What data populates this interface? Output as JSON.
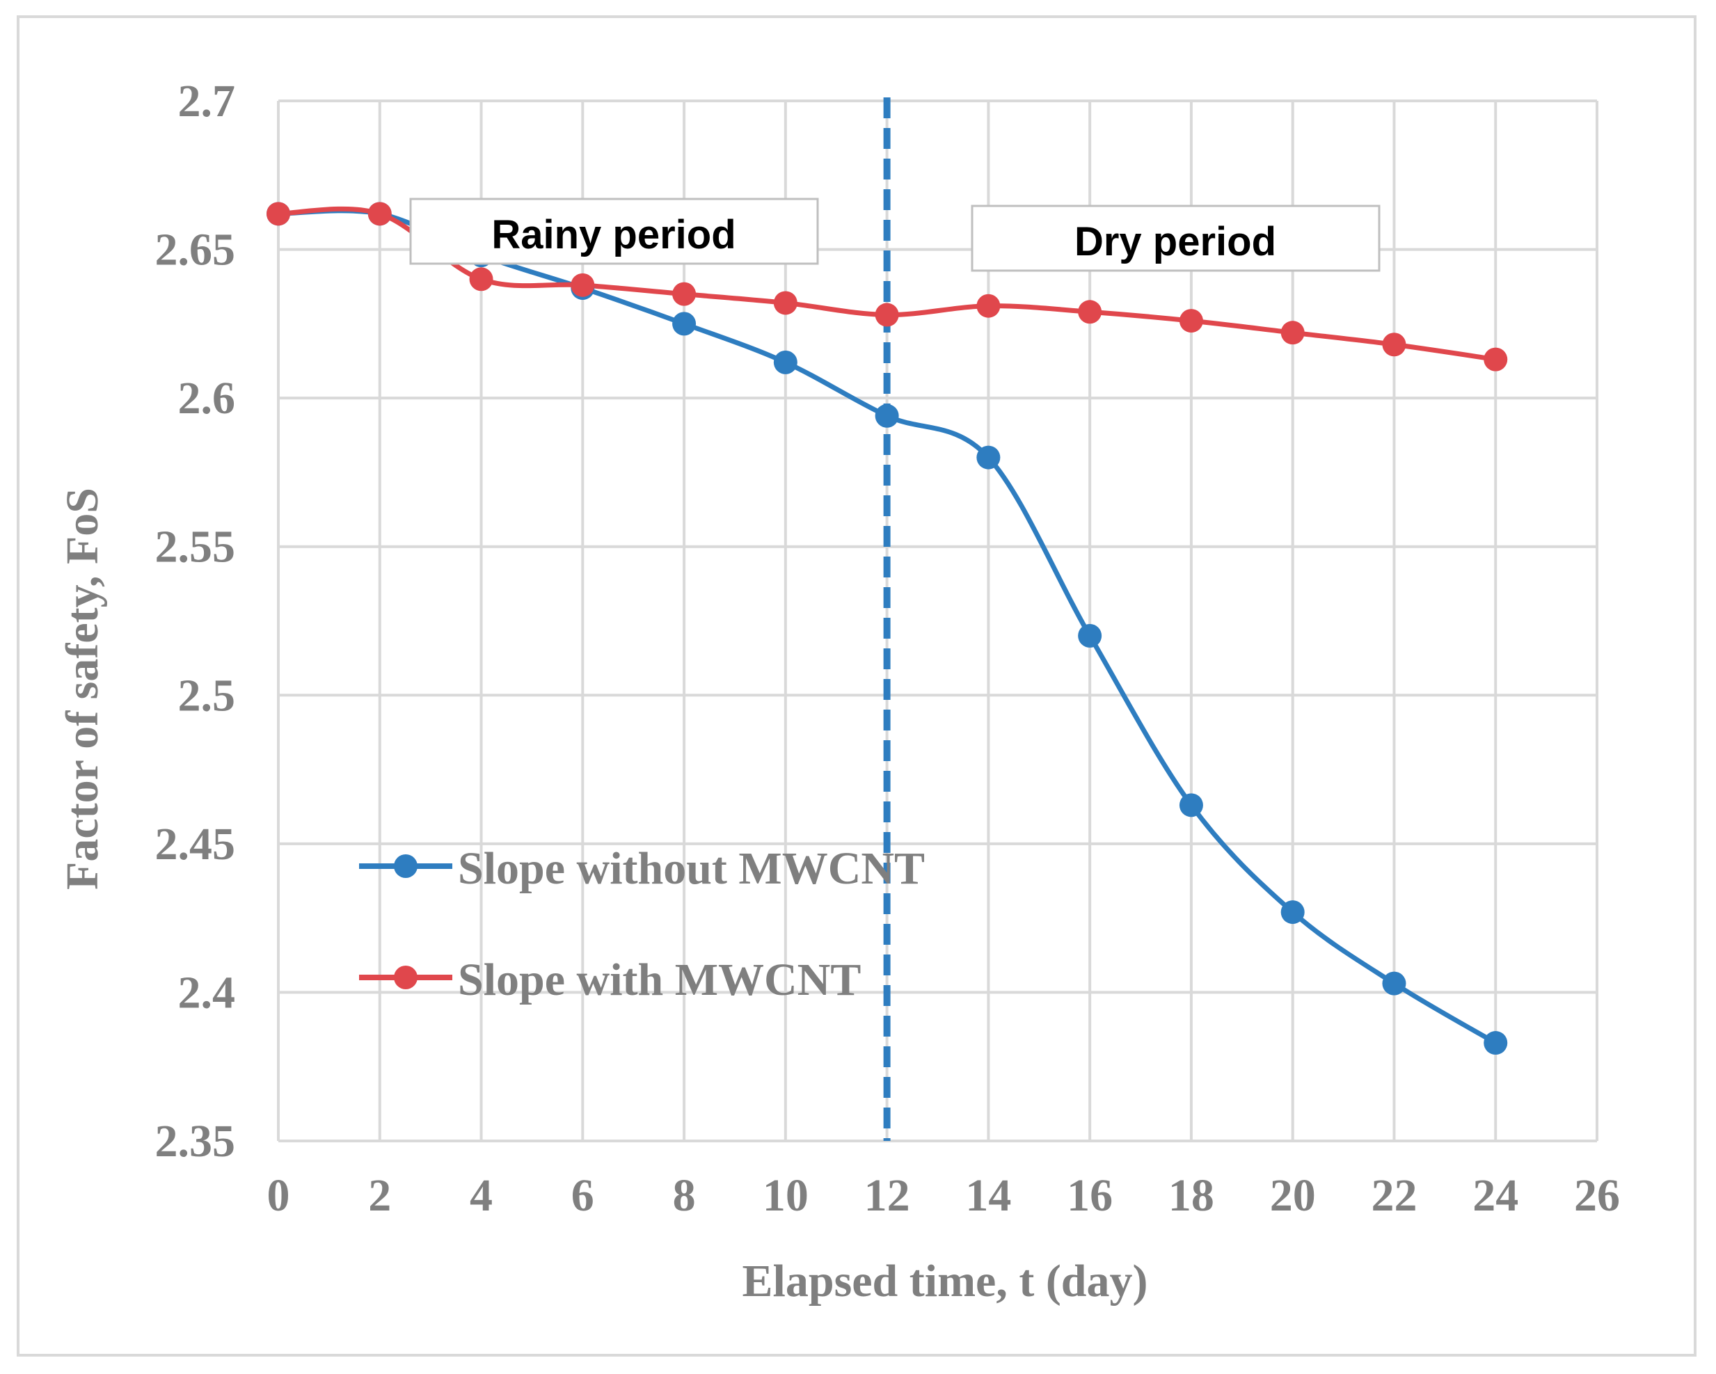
{
  "chart_data": {
    "type": "line",
    "xlabel": "Elapsed time, t (day)",
    "ylabel": "Factor of safety, FoS",
    "xlim": [
      0,
      26
    ],
    "ylim": [
      2.35,
      2.7
    ],
    "x_ticks": [
      "0",
      "2",
      "4",
      "6",
      "8",
      "10",
      "12",
      "14",
      "16",
      "18",
      "20",
      "22",
      "24",
      "26"
    ],
    "y_ticks": [
      "2.35",
      "2.4",
      "2.45",
      "2.5",
      "2.55",
      "2.6",
      "2.65",
      "2.7"
    ],
    "grid": true,
    "legend_position": "lower-left",
    "series": [
      {
        "name": "Slope without MWCNT",
        "color": "#2e7dc0",
        "x": [
          0,
          2,
          4,
          6,
          8,
          10,
          12,
          14,
          16,
          18,
          20,
          22,
          24
        ],
        "y": [
          2.662,
          2.662,
          2.648,
          2.637,
          2.625,
          2.612,
          2.594,
          2.58,
          2.52,
          2.463,
          2.427,
          2.403,
          2.383
        ]
      },
      {
        "name": "Slope with MWCNT",
        "color": "#e0474c",
        "x": [
          0,
          2,
          4,
          6,
          8,
          10,
          12,
          14,
          16,
          18,
          20,
          22,
          24
        ],
        "y": [
          2.662,
          2.662,
          2.64,
          2.638,
          2.635,
          2.632,
          2.628,
          2.631,
          2.629,
          2.626,
          2.622,
          2.618,
          2.613
        ]
      }
    ],
    "divider": {
      "x": 12,
      "color": "#2e7dc0"
    },
    "annotations": [
      "Rainy period",
      "Dry period"
    ]
  }
}
